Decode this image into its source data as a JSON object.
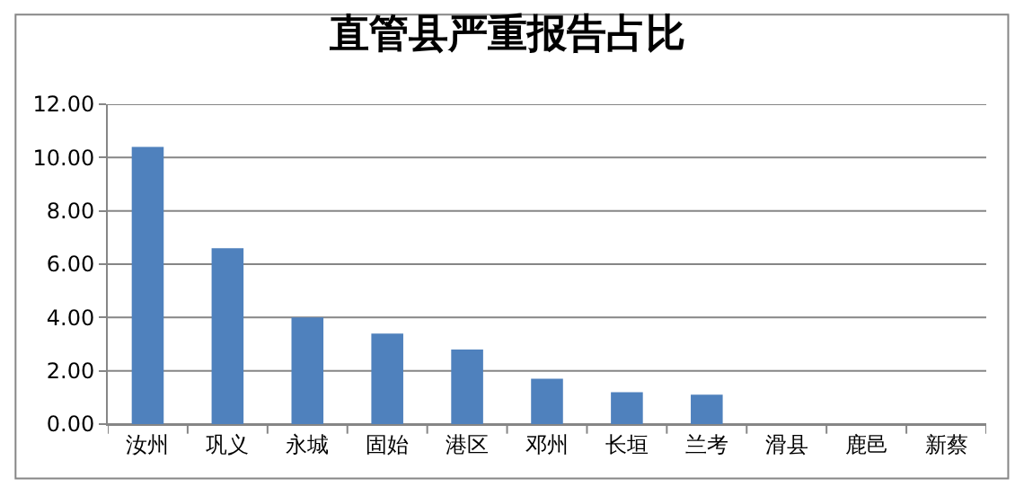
{
  "chart_data": {
    "type": "bar",
    "title": "直管县严重报告占比",
    "categories": [
      "汝州",
      "巩义",
      "永城",
      "固始",
      "港区",
      "邓州",
      "长垣",
      "兰考",
      "滑县",
      "鹿邑",
      "新蔡"
    ],
    "values": [
      10.4,
      6.6,
      4.0,
      3.4,
      2.8,
      1.7,
      1.2,
      1.1,
      0,
      0,
      0
    ],
    "color": "#4f81bd",
    "ylim": [
      0,
      12
    ],
    "yticks": [
      {
        "value": 0,
        "label": "0.00"
      },
      {
        "value": 2,
        "label": "2.00"
      },
      {
        "value": 4,
        "label": "4.00"
      },
      {
        "value": 6,
        "label": "6.00"
      },
      {
        "value": 8,
        "label": "8.00"
      },
      {
        "value": 10,
        "label": "10.00"
      },
      {
        "value": 12,
        "label": "12.00"
      }
    ],
    "grid": "y"
  }
}
